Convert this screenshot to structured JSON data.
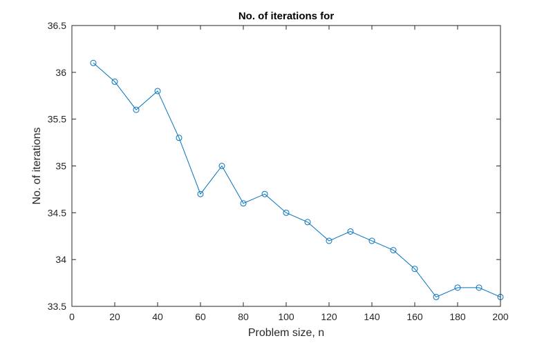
{
  "chart_data": {
    "type": "line",
    "title": "No. of iterations for",
    "xlabel": "Problem size, n",
    "ylabel": "No. of iterations",
    "xlim": [
      0,
      200
    ],
    "ylim": [
      33.5,
      36.5
    ],
    "xticks": [
      0,
      20,
      40,
      60,
      80,
      100,
      120,
      140,
      160,
      180,
      200
    ],
    "yticks": [
      33.5,
      34,
      34.5,
      35,
      35.5,
      36,
      36.5
    ],
    "xtick_labels": [
      "0",
      "20",
      "40",
      "60",
      "80",
      "100",
      "120",
      "140",
      "160",
      "180",
      "200"
    ],
    "ytick_labels": [
      "33.5",
      "34",
      "34.5",
      "35",
      "35.5",
      "36",
      "36.5"
    ],
    "grid": false,
    "marker": "circle",
    "line_color": "#0072BD",
    "x": [
      10,
      20,
      30,
      40,
      50,
      60,
      70,
      80,
      90,
      100,
      110,
      120,
      130,
      140,
      150,
      160,
      170,
      180,
      190,
      200
    ],
    "y": [
      36.1,
      35.9,
      35.6,
      35.8,
      35.3,
      34.7,
      35.0,
      34.6,
      34.7,
      34.5,
      34.4,
      34.2,
      34.3,
      34.2,
      34.1,
      33.9,
      33.6,
      33.7,
      33.7,
      33.6
    ]
  }
}
